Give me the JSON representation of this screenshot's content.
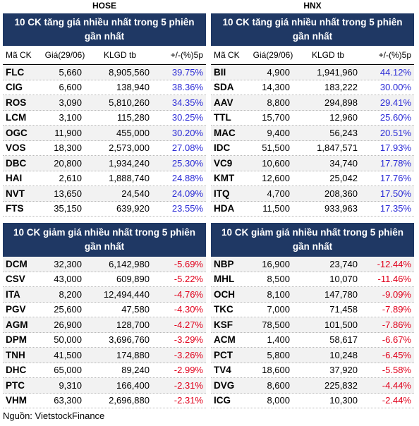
{
  "hose": {
    "exchange": "HOSE",
    "gain_title": "10 CK tăng giá nhiều nhất trong 5 phiên gần nhất",
    "headers": [
      "Mã CK",
      "Giá(29/06)",
      "KLGD tb",
      "+/-(%)5p"
    ],
    "gainers": [
      {
        "code": "FLC",
        "price": "5,660",
        "volume": "8,905,560",
        "change": "39.75%"
      },
      {
        "code": "CIG",
        "price": "6,600",
        "volume": "138,940",
        "change": "38.36%"
      },
      {
        "code": "ROS",
        "price": "3,090",
        "volume": "5,810,260",
        "change": "34.35%"
      },
      {
        "code": "LCM",
        "price": "3,100",
        "volume": "115,280",
        "change": "30.25%"
      },
      {
        "code": "OGC",
        "price": "11,900",
        "volume": "455,000",
        "change": "30.20%"
      },
      {
        "code": "VOS",
        "price": "18,300",
        "volume": "2,573,000",
        "change": "27.08%"
      },
      {
        "code": "DBC",
        "price": "20,800",
        "volume": "1,934,240",
        "change": "25.30%"
      },
      {
        "code": "HAI",
        "price": "2,610",
        "volume": "1,888,740",
        "change": "24.88%"
      },
      {
        "code": "NVT",
        "price": "13,650",
        "volume": "24,540",
        "change": "24.09%"
      },
      {
        "code": "FTS",
        "price": "35,150",
        "volume": "639,920",
        "change": "23.55%"
      }
    ],
    "loss_title": "10 CK giảm giá nhiều nhất trong 5 phiên gần nhất",
    "losers": [
      {
        "code": "DCM",
        "price": "32,300",
        "volume": "6,142,980",
        "change": "-5.69%"
      },
      {
        "code": "CSV",
        "price": "43,000",
        "volume": "609,890",
        "change": "-5.22%"
      },
      {
        "code": "ITA",
        "price": "8,200",
        "volume": "12,494,440",
        "change": "-4.76%"
      },
      {
        "code": "PGV",
        "price": "25,600",
        "volume": "47,580",
        "change": "-4.30%"
      },
      {
        "code": "AGM",
        "price": "26,900",
        "volume": "128,700",
        "change": "-4.27%"
      },
      {
        "code": "DPM",
        "price": "50,000",
        "volume": "3,696,760",
        "change": "-3.29%"
      },
      {
        "code": "TNH",
        "price": "41,500",
        "volume": "174,880",
        "change": "-3.26%"
      },
      {
        "code": "DHC",
        "price": "65,000",
        "volume": "89,240",
        "change": "-2.99%"
      },
      {
        "code": "PTC",
        "price": "9,310",
        "volume": "166,400",
        "change": "-2.31%"
      },
      {
        "code": "VHM",
        "price": "63,300",
        "volume": "2,696,880",
        "change": "-2.31%"
      }
    ]
  },
  "hnx": {
    "exchange": "HNX",
    "gain_title": "10 CK tăng giá nhiều nhất trong 5 phiên gần nhất",
    "headers": [
      "Mã CK",
      "Giá(29/06)",
      "KLGD tb",
      "+/-(%)5p"
    ],
    "gainers": [
      {
        "code": "BII",
        "price": "4,900",
        "volume": "1,941,960",
        "change": "44.12%"
      },
      {
        "code": "SDA",
        "price": "14,300",
        "volume": "183,222",
        "change": "30.00%"
      },
      {
        "code": "AAV",
        "price": "8,800",
        "volume": "294,898",
        "change": "29.41%"
      },
      {
        "code": "TTL",
        "price": "15,700",
        "volume": "12,960",
        "change": "25.60%"
      },
      {
        "code": "MAC",
        "price": "9,400",
        "volume": "56,243",
        "change": "20.51%"
      },
      {
        "code": "IDC",
        "price": "51,500",
        "volume": "1,847,571",
        "change": "17.93%"
      },
      {
        "code": "VC9",
        "price": "10,600",
        "volume": "34,740",
        "change": "17.78%"
      },
      {
        "code": "KMT",
        "price": "12,600",
        "volume": "25,042",
        "change": "17.76%"
      },
      {
        "code": "ITQ",
        "price": "4,700",
        "volume": "208,360",
        "change": "17.50%"
      },
      {
        "code": "HDA",
        "price": "11,500",
        "volume": "933,963",
        "change": "17.35%"
      }
    ],
    "loss_title": "10 CK giảm giá nhiều nhất trong 5 phiên gần nhất",
    "losers": [
      {
        "code": "NBP",
        "price": "16,900",
        "volume": "23,740",
        "change": "-12.44%"
      },
      {
        "code": "MHL",
        "price": "8,500",
        "volume": "10,070",
        "change": "-11.46%"
      },
      {
        "code": "OCH",
        "price": "8,100",
        "volume": "147,780",
        "change": "-9.09%"
      },
      {
        "code": "TKC",
        "price": "7,000",
        "volume": "71,458",
        "change": "-7.89%"
      },
      {
        "code": "KSF",
        "price": "78,500",
        "volume": "101,500",
        "change": "-7.86%"
      },
      {
        "code": "ACM",
        "price": "1,400",
        "volume": "58,617",
        "change": "-6.67%"
      },
      {
        "code": "PCT",
        "price": "5,800",
        "volume": "10,248",
        "change": "-6.45%"
      },
      {
        "code": "TV4",
        "price": "18,600",
        "volume": "37,920",
        "change": "-5.58%"
      },
      {
        "code": "DVG",
        "price": "8,600",
        "volume": "225,832",
        "change": "-4.44%"
      },
      {
        "code": "ICG",
        "price": "8,000",
        "volume": "10,300",
        "change": "-2.44%"
      }
    ]
  },
  "source": "Nguồn: VietstockFinance",
  "colors": {
    "banner": "#1f3864",
    "up": "#2b2bd6",
    "down": "#e0001b"
  }
}
